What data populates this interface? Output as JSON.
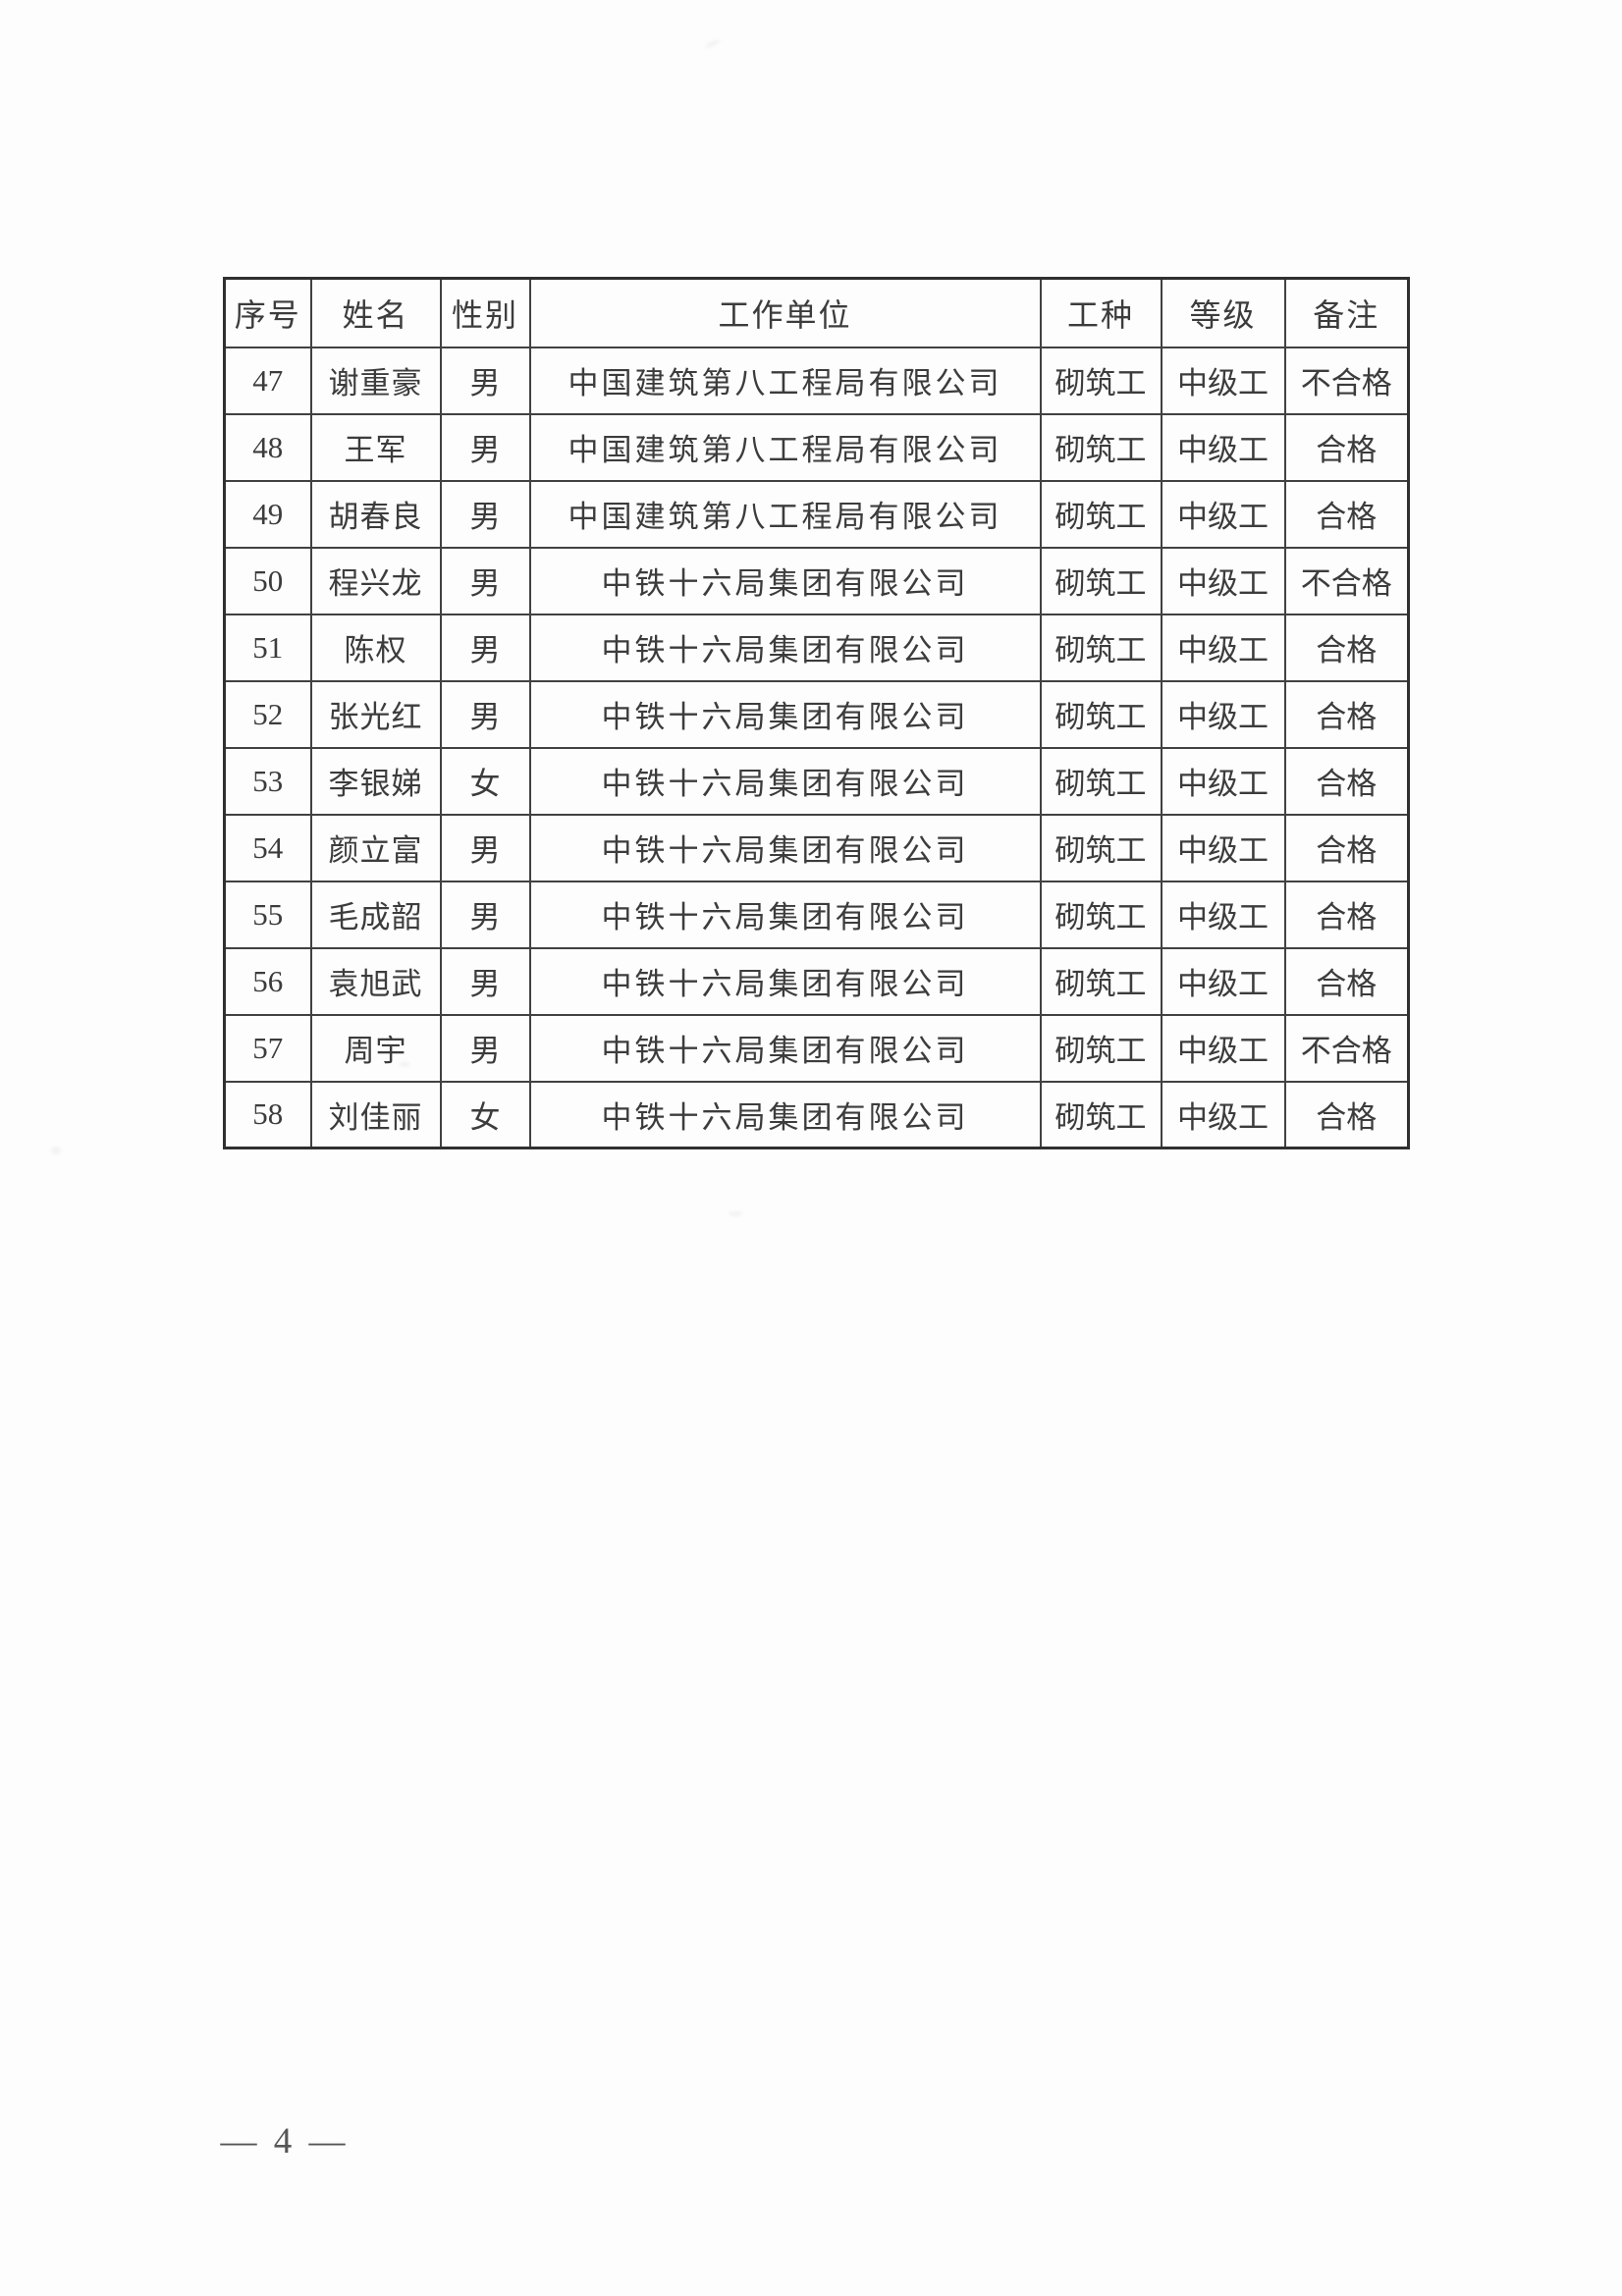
{
  "document": {
    "footer_page_number": "— 4 —"
  },
  "colors": {
    "paper": "#fdfdfd",
    "table_border": "#414141",
    "text": "#3c3c3c"
  },
  "table": {
    "headers": [
      "序号",
      "姓名",
      "性别",
      "工作单位",
      "工种",
      "等级",
      "备注"
    ],
    "rows": [
      [
        "47",
        "谢重豪",
        "男",
        "中国建筑第八工程局有限公司",
        "砌筑工",
        "中级工",
        "不合格"
      ],
      [
        "48",
        "王军",
        "男",
        "中国建筑第八工程局有限公司",
        "砌筑工",
        "中级工",
        "合格"
      ],
      [
        "49",
        "胡春良",
        "男",
        "中国建筑第八工程局有限公司",
        "砌筑工",
        "中级工",
        "合格"
      ],
      [
        "50",
        "程兴龙",
        "男",
        "中铁十六局集团有限公司",
        "砌筑工",
        "中级工",
        "不合格"
      ],
      [
        "51",
        "陈权",
        "男",
        "中铁十六局集团有限公司",
        "砌筑工",
        "中级工",
        "合格"
      ],
      [
        "52",
        "张光红",
        "男",
        "中铁十六局集团有限公司",
        "砌筑工",
        "中级工",
        "合格"
      ],
      [
        "53",
        "李银娣",
        "女",
        "中铁十六局集团有限公司",
        "砌筑工",
        "中级工",
        "合格"
      ],
      [
        "54",
        "颜立富",
        "男",
        "中铁十六局集团有限公司",
        "砌筑工",
        "中级工",
        "合格"
      ],
      [
        "55",
        "毛成韶",
        "男",
        "中铁十六局集团有限公司",
        "砌筑工",
        "中级工",
        "合格"
      ],
      [
        "56",
        "袁旭武",
        "男",
        "中铁十六局集团有限公司",
        "砌筑工",
        "中级工",
        "合格"
      ],
      [
        "57",
        "周宇",
        "男",
        "中铁十六局集团有限公司",
        "砌筑工",
        "中级工",
        "不合格"
      ],
      [
        "58",
        "刘佳丽",
        "女",
        "中铁十六局集团有限公司",
        "砌筑工",
        "中级工",
        "合格"
      ]
    ]
  }
}
